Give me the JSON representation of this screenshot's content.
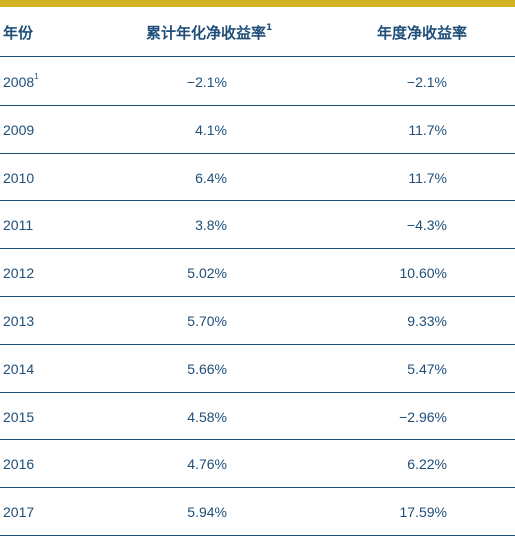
{
  "table": {
    "headers": {
      "year": "年份",
      "cumulative": "累计年化净收益率",
      "cumulative_sup": "1",
      "annual": "年度净收益率"
    },
    "rows": [
      {
        "year": "2008",
        "year_sup": "1",
        "cumulative": "−2.1%",
        "annual": "−2.1%"
      },
      {
        "year": "2009",
        "year_sup": "",
        "cumulative": "4.1%",
        "annual": "11.7%"
      },
      {
        "year": "2010",
        "year_sup": "",
        "cumulative": "6.4%",
        "annual": "11.7%"
      },
      {
        "year": "2011",
        "year_sup": "",
        "cumulative": "3.8%",
        "annual": "−4.3%"
      },
      {
        "year": "2012",
        "year_sup": "",
        "cumulative": "5.02%",
        "annual": "10.60%"
      },
      {
        "year": "2013",
        "year_sup": "",
        "cumulative": "5.70%",
        "annual": "9.33%"
      },
      {
        "year": "2014",
        "year_sup": "",
        "cumulative": "5.66%",
        "annual": "5.47%"
      },
      {
        "year": "2015",
        "year_sup": "",
        "cumulative": "4.58%",
        "annual": "−2.96%"
      },
      {
        "year": "2016",
        "year_sup": "",
        "cumulative": "4.76%",
        "annual": "6.22%"
      },
      {
        "year": "2017",
        "year_sup": "",
        "cumulative": "5.94%",
        "annual": "17.59%"
      }
    ]
  },
  "colors": {
    "accent_bar": "#d2b122",
    "text": "#1f4e79",
    "rule": "#1f4e79"
  }
}
